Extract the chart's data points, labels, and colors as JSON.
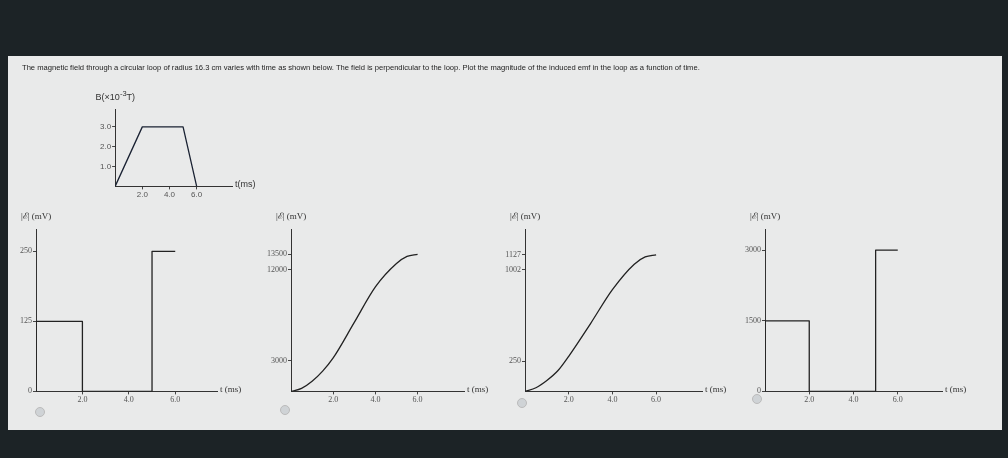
{
  "chart_data": [
    {
      "type": "line",
      "title": "The magnetic field through a circular loop of radius 16.3 cm varies with time as shown below. The field is perpendicular to the loop. Plot the magnitude of the induced emf in the loop as a function of time.",
      "ylabel": "B(×10$^{-3}$T)",
      "xlabel": "t(ms)",
      "x": [
        0,
        2,
        5,
        6
      ],
      "values": [
        0,
        3,
        3,
        0
      ],
      "color": "#1a2233",
      "xlim": [
        0,
        8.6
      ],
      "ylim": [
        0,
        3.9
      ],
      "xticks": [
        {
          "value": 2,
          "label": "2.0"
        },
        {
          "value": 4,
          "label": "4.0"
        },
        {
          "value": 6,
          "label": "6.0"
        }
      ],
      "yticks": [
        {
          "value": 1,
          "label": "1.0"
        },
        {
          "value": 2,
          "label": "2.0"
        },
        {
          "value": 3,
          "label": "3.0"
        }
      ],
      "marker": "none"
    },
    {
      "type": "line",
      "ylabel": "|ℰ| (mV)",
      "xlabel": "t (ms)",
      "x": [
        0,
        0,
        2,
        2,
        5,
        5,
        6
      ],
      "values": [
        0,
        125,
        125,
        0,
        0,
        250,
        250
      ],
      "color": "#222222",
      "xlim": [
        0,
        7.8
      ],
      "ylim": [
        0,
        290
      ],
      "xticks": [
        {
          "value": 2,
          "label": "2.0"
        },
        {
          "value": 4,
          "label": "4.0"
        },
        {
          "value": 6,
          "label": "6.0"
        }
      ],
      "yticks": [
        0,
        125,
        250
      ],
      "marker": "none"
    },
    {
      "type": "line",
      "ylabel": "|ℰ| (mV)",
      "xlabel": "t (ms)",
      "x": [
        0,
        0.5,
        1,
        1.5,
        2,
        3,
        4,
        5,
        5.5,
        6
      ],
      "values": [
        0,
        300,
        1000,
        2000,
        3300,
        6800,
        10300,
        12600,
        13300,
        13500
      ],
      "color": "#222222",
      "xlim": [
        0,
        8.2
      ],
      "ylim": [
        0,
        16000
      ],
      "xticks": [
        {
          "value": 2,
          "label": "2.0"
        },
        {
          "value": 4,
          "label": "4.0"
        },
        {
          "value": 6,
          "label": "6.0"
        }
      ],
      "yticks": [
        3000,
        12000,
        13500
      ],
      "marker": "none"
    },
    {
      "type": "line",
      "ylabel": "|ℰ| (mV)",
      "xlabel": "t (ms)",
      "x": [
        0,
        0.5,
        1,
        1.5,
        2,
        3,
        4,
        5,
        5.5,
        6
      ],
      "values": [
        0,
        30,
        90,
        170,
        290,
        560,
        840,
        1050,
        1110,
        1127
      ],
      "color": "#222222",
      "xlim": [
        0,
        8.1
      ],
      "ylim": [
        0,
        1340
      ],
      "xticks": [
        {
          "value": 2,
          "label": "2.0"
        },
        {
          "value": 4,
          "label": "4.0"
        },
        {
          "value": 6,
          "label": "6.0"
        }
      ],
      "yticks": [
        250,
        1002,
        1127
      ],
      "marker": "none"
    },
    {
      "type": "line",
      "ylabel": "|ℰ| (mV)",
      "xlabel": "t (ms)",
      "x": [
        0,
        0,
        2,
        2,
        5,
        5,
        6
      ],
      "values": [
        0,
        1500,
        1500,
        0,
        0,
        3000,
        3000
      ],
      "color": "#222222",
      "xlim": [
        0,
        8
      ],
      "ylim": [
        0,
        3450
      ],
      "xticks": [
        {
          "value": 2,
          "label": "2.0"
        },
        {
          "value": 4,
          "label": "4.0"
        },
        {
          "value": 6,
          "label": "6.0"
        }
      ],
      "yticks": [
        0,
        1500,
        3000
      ],
      "marker": "none"
    }
  ]
}
